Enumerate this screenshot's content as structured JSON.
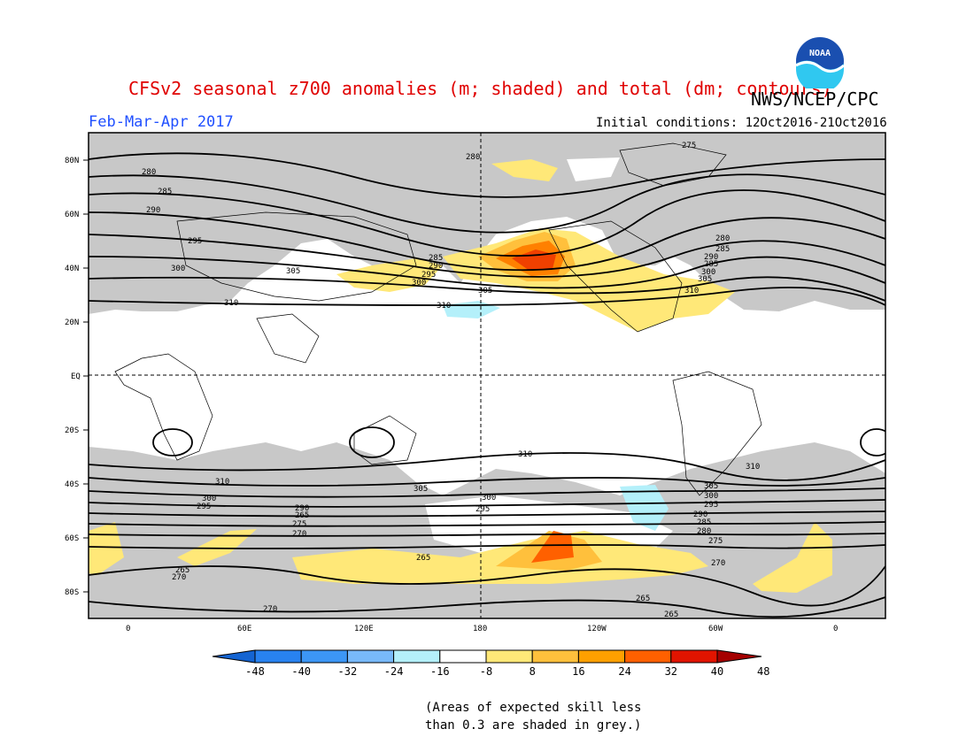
{
  "header": {
    "title": "CFSv2 seasonal z700 anomalies (m; shaded) and total (dm; contours)",
    "org": "NWS/NCEP/CPC",
    "period": "Feb-Mar-Apr 2017",
    "initial_conditions": "Initial conditions: 12Oct2016-21Oct2016"
  },
  "logo": {
    "text": "NOAA",
    "icon": "noaa-logo-icon"
  },
  "map": {
    "lat_labels": [
      "80N",
      "60N",
      "40N",
      "20N",
      "EQ",
      "20S",
      "40S",
      "60S",
      "80S"
    ],
    "lon_labels": [
      "0",
      "60E",
      "120E",
      "180",
      "120W",
      "60W",
      "0"
    ],
    "contour_labels": [
      "275",
      "280",
      "285",
      "290",
      "295",
      "300",
      "305",
      "310",
      "265",
      "270"
    ]
  },
  "colorbar": {
    "ticks": [
      "-48",
      "-40",
      "-32",
      "-24",
      "-16",
      "-8",
      "8",
      "16",
      "24",
      "32",
      "40",
      "48"
    ],
    "colors": [
      "#1464d2",
      "#2882f0",
      "#3c96f5",
      "#78b9fa",
      "#b4f0fa",
      "#ffffff",
      "#ffe878",
      "#ffc03c",
      "#ffa000",
      "#ff6000",
      "#e11400",
      "#a50000"
    ]
  },
  "footnote": {
    "line1": "(Areas of expected skill less",
    "line2": "than 0.3 are shaded in grey.)"
  }
}
